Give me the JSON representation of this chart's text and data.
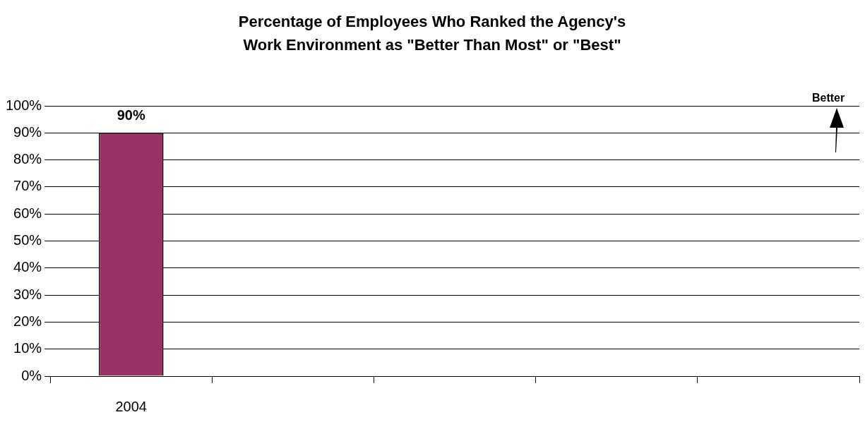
{
  "chart_data": {
    "type": "bar",
    "title": "Percentage of Employees Who Ranked the Agency's Work Environment as \"Better Than Most\" or \"Best\"",
    "categories": [
      "2004",
      null,
      null,
      null,
      null
    ],
    "values": [
      90,
      null,
      null,
      null,
      null
    ],
    "color": "#993366",
    "value_labels": [
      "90%",
      null,
      null,
      null,
      null
    ],
    "ylim": [
      0,
      100
    ],
    "yticks": [
      {
        "value": 0,
        "label": "0%"
      },
      {
        "value": 10,
        "label": "10%"
      },
      {
        "value": 20,
        "label": "20%"
      },
      {
        "value": 30,
        "label": "30%"
      },
      {
        "value": 40,
        "label": "40%"
      },
      {
        "value": 50,
        "label": "50%"
      },
      {
        "value": 60,
        "label": "60%"
      },
      {
        "value": 70,
        "label": "70%"
      },
      {
        "value": 80,
        "label": "80%"
      },
      {
        "value": 90,
        "label": "90%"
      },
      {
        "value": 100,
        "label": "100%"
      }
    ],
    "grid": "y",
    "annotations": [
      "Better"
    ]
  }
}
